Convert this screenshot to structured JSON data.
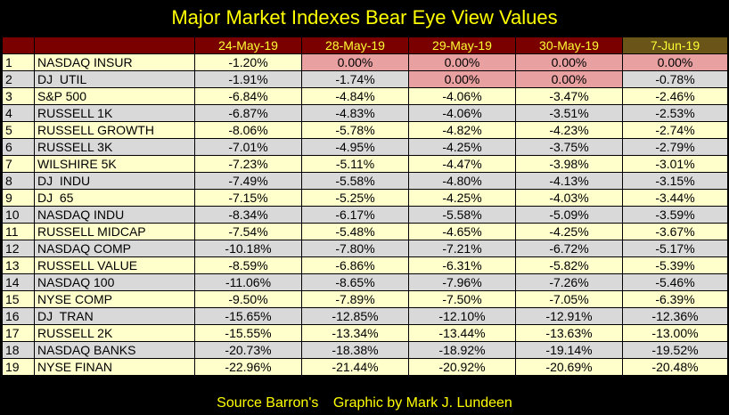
{
  "title": "Major Market Indexes Bear Eye View Values",
  "headers": [
    "",
    "",
    "24-May-19",
    "28-May-19",
    "29-May-19",
    "30-May-19",
    "7-Jun-19"
  ],
  "rows": [
    {
      "num": "1",
      "name": "NASDAQ INSUR",
      "values": [
        "-1.20%",
        "0.00%",
        "0.00%",
        "0.00%",
        "0.00%"
      ],
      "highlight": [
        false,
        true,
        true,
        true,
        true
      ]
    },
    {
      "num": "2",
      "name": "DJ  UTIL",
      "values": [
        "-1.91%",
        "-1.74%",
        "0.00%",
        "0.00%",
        "-0.78%"
      ],
      "highlight": [
        false,
        false,
        true,
        true,
        false
      ]
    },
    {
      "num": "3",
      "name": "S&P 500",
      "values": [
        "-6.84%",
        "-4.84%",
        "-4.06%",
        "-3.47%",
        "-2.46%"
      ],
      "highlight": [
        false,
        false,
        false,
        false,
        false
      ]
    },
    {
      "num": "4",
      "name": "RUSSELL 1K",
      "values": [
        "-6.87%",
        "-4.83%",
        "-4.06%",
        "-3.51%",
        "-2.53%"
      ],
      "highlight": [
        false,
        false,
        false,
        false,
        false
      ]
    },
    {
      "num": "5",
      "name": "RUSSELL GROWTH",
      "values": [
        "-8.06%",
        "-5.78%",
        "-4.82%",
        "-4.23%",
        "-2.74%"
      ],
      "highlight": [
        false,
        false,
        false,
        false,
        false
      ]
    },
    {
      "num": "6",
      "name": "RUSSELL 3K",
      "values": [
        "-7.01%",
        "-4.95%",
        "-4.25%",
        "-3.75%",
        "-2.79%"
      ],
      "highlight": [
        false,
        false,
        false,
        false,
        false
      ]
    },
    {
      "num": "7",
      "name": "WILSHIRE 5K",
      "values": [
        "-7.23%",
        "-5.11%",
        "-4.47%",
        "-3.98%",
        "-3.01%"
      ],
      "highlight": [
        false,
        false,
        false,
        false,
        false
      ]
    },
    {
      "num": "8",
      "name": "DJ  INDU",
      "values": [
        "-7.49%",
        "-5.58%",
        "-4.80%",
        "-4.13%",
        "-3.15%"
      ],
      "highlight": [
        false,
        false,
        false,
        false,
        false
      ]
    },
    {
      "num": "9",
      "name": "DJ  65",
      "values": [
        "-7.15%",
        "-5.25%",
        "-4.25%",
        "-4.03%",
        "-3.44%"
      ],
      "highlight": [
        false,
        false,
        false,
        false,
        false
      ]
    },
    {
      "num": "10",
      "name": "NASDAQ INDU",
      "values": [
        "-8.34%",
        "-6.17%",
        "-5.58%",
        "-5.09%",
        "-3.59%"
      ],
      "highlight": [
        false,
        false,
        false,
        false,
        false
      ]
    },
    {
      "num": "11",
      "name": "RUSSELL MIDCAP",
      "values": [
        "-7.54%",
        "-5.48%",
        "-4.65%",
        "-4.25%",
        "-3.67%"
      ],
      "highlight": [
        false,
        false,
        false,
        false,
        false
      ]
    },
    {
      "num": "12",
      "name": "NASDAQ COMP",
      "values": [
        "-10.18%",
        "-7.80%",
        "-7.21%",
        "-6.72%",
        "-5.17%"
      ],
      "highlight": [
        false,
        false,
        false,
        false,
        false
      ]
    },
    {
      "num": "13",
      "name": "RUSSELL VALUE",
      "values": [
        "-8.59%",
        "-6.86%",
        "-6.31%",
        "-5.82%",
        "-5.39%"
      ],
      "highlight": [
        false,
        false,
        false,
        false,
        false
      ]
    },
    {
      "num": "14",
      "name": "NASDAQ 100",
      "values": [
        "-11.06%",
        "-8.65%",
        "-7.96%",
        "-7.26%",
        "-5.46%"
      ],
      "highlight": [
        false,
        false,
        false,
        false,
        false
      ]
    },
    {
      "num": "15",
      "name": "NYSE COMP",
      "values": [
        "-9.50%",
        "-7.89%",
        "-7.50%",
        "-7.05%",
        "-6.39%"
      ],
      "highlight": [
        false,
        false,
        false,
        false,
        false
      ]
    },
    {
      "num": "16",
      "name": "DJ  TRAN",
      "values": [
        "-15.65%",
        "-12.85%",
        "-12.10%",
        "-12.91%",
        "-12.36%"
      ],
      "highlight": [
        false,
        false,
        false,
        false,
        false
      ]
    },
    {
      "num": "17",
      "name": "RUSSELL 2K",
      "values": [
        "-15.55%",
        "-13.34%",
        "-13.44%",
        "-13.63%",
        "-13.00%"
      ],
      "highlight": [
        false,
        false,
        false,
        false,
        false
      ]
    },
    {
      "num": "18",
      "name": "NASDAQ BANKS",
      "values": [
        "-20.73%",
        "-18.38%",
        "-18.92%",
        "-19.14%",
        "-19.52%"
      ],
      "highlight": [
        false,
        false,
        false,
        false,
        false
      ]
    },
    {
      "num": "19",
      "name": "NYSE FINAN",
      "values": [
        "-22.96%",
        "-21.44%",
        "-20.92%",
        "-20.69%",
        "-20.48%"
      ],
      "highlight": [
        false,
        false,
        false,
        false,
        false
      ]
    }
  ],
  "footer": {
    "source": "Source Barron's",
    "credit": "Graphic by Mark J. Lundeen"
  },
  "colors": {
    "background": "#000000",
    "title_text": "#ffff00",
    "header_bg": "#7a0000",
    "header_last_bg": "#6a5418",
    "header_text": "#ffff33",
    "row_odd": "#ffffcc",
    "row_even": "#d9d9d9",
    "highlight": "#e8a0a0"
  }
}
